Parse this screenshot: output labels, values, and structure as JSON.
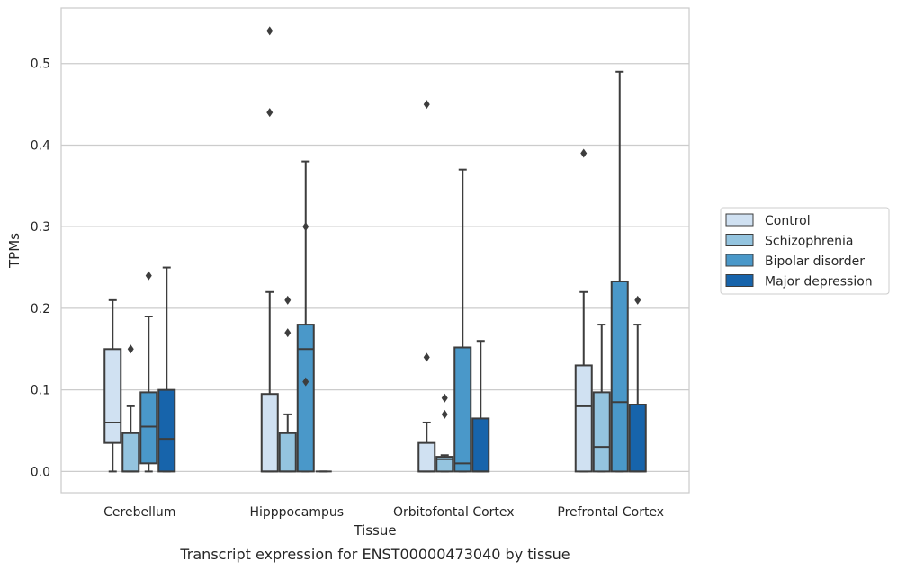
{
  "chart_data": {
    "type": "box",
    "title": "",
    "caption": "Transcript expression for ENST00000473040 by tissue",
    "xlabel": "Tissue",
    "ylabel": "TPMs",
    "ylim": [
      -0.026,
      0.568
    ],
    "yticks": [
      0.0,
      0.1,
      0.2,
      0.3,
      0.4,
      0.5
    ],
    "ytick_labels": [
      "0.0",
      "0.1",
      "0.2",
      "0.3",
      "0.4",
      "0.5"
    ],
    "grid": "horizontal",
    "legend_position": "right",
    "categories": [
      "Cerebellum",
      "Hipppocampus",
      "Orbitofontal Cortex",
      "Prefrontal Cortex"
    ],
    "series": [
      {
        "name": "Control",
        "color": "#d0e1f2",
        "boxes": [
          {
            "whislo": 0.0,
            "q1": 0.035,
            "med": 0.06,
            "q3": 0.15,
            "whishi": 0.21,
            "fliers": []
          },
          {
            "whislo": 0.0,
            "q1": 0.0,
            "med": 0.0,
            "q3": 0.095,
            "whishi": 0.22,
            "fliers": [
              0.44,
              0.54
            ]
          },
          {
            "whislo": 0.0,
            "q1": 0.0,
            "med": 0.0,
            "q3": 0.035,
            "whishi": 0.06,
            "fliers": [
              0.14,
              0.45
            ]
          },
          {
            "whislo": 0.0,
            "q1": 0.0,
            "med": 0.08,
            "q3": 0.13,
            "whishi": 0.22,
            "fliers": [
              0.39
            ]
          }
        ]
      },
      {
        "name": "Schizophrenia",
        "color": "#94c4df",
        "boxes": [
          {
            "whislo": 0.0,
            "q1": 0.0,
            "med": 0.0,
            "q3": 0.047,
            "whishi": 0.08,
            "fliers": [
              0.15
            ]
          },
          {
            "whislo": 0.0,
            "q1": 0.0,
            "med": 0.0,
            "q3": 0.047,
            "whishi": 0.07,
            "fliers": [
              0.17,
              0.21
            ]
          },
          {
            "whislo": 0.0,
            "q1": 0.0,
            "med": 0.015,
            "q3": 0.018,
            "whishi": 0.02,
            "fliers": [
              0.07,
              0.09
            ]
          },
          {
            "whislo": 0.0,
            "q1": 0.0,
            "med": 0.03,
            "q3": 0.097,
            "whishi": 0.18,
            "fliers": []
          }
        ]
      },
      {
        "name": "Bipolar disorder",
        "color": "#4a98c9",
        "boxes": [
          {
            "whislo": 0.0,
            "q1": 0.01,
            "med": 0.055,
            "q3": 0.097,
            "whishi": 0.19,
            "fliers": [
              0.24
            ]
          },
          {
            "whislo": 0.0,
            "q1": 0.0,
            "med": 0.15,
            "q3": 0.18,
            "whishi": 0.38,
            "fliers": [
              0.11,
              0.3
            ]
          },
          {
            "whislo": 0.0,
            "q1": 0.0,
            "med": 0.01,
            "q3": 0.152,
            "whishi": 0.37,
            "fliers": []
          },
          {
            "whislo": 0.0,
            "q1": 0.0,
            "med": 0.085,
            "q3": 0.233,
            "whishi": 0.49,
            "fliers": []
          }
        ]
      },
      {
        "name": "Major depression",
        "color": "#1764ab",
        "boxes": [
          {
            "whislo": 0.0,
            "q1": 0.0,
            "med": 0.04,
            "q3": 0.1,
            "whishi": 0.25,
            "fliers": []
          },
          {
            "whislo": 0.0,
            "q1": 0.0,
            "med": 0.0,
            "q3": 0.0,
            "whishi": 0.0,
            "fliers": []
          },
          {
            "whislo": 0.0,
            "q1": 0.0,
            "med": 0.0,
            "q3": 0.065,
            "whishi": 0.16,
            "fliers": []
          },
          {
            "whislo": 0.0,
            "q1": 0.0,
            "med": 0.0,
            "q3": 0.082,
            "whishi": 0.18,
            "fliers": [
              0.21
            ]
          }
        ]
      }
    ]
  }
}
